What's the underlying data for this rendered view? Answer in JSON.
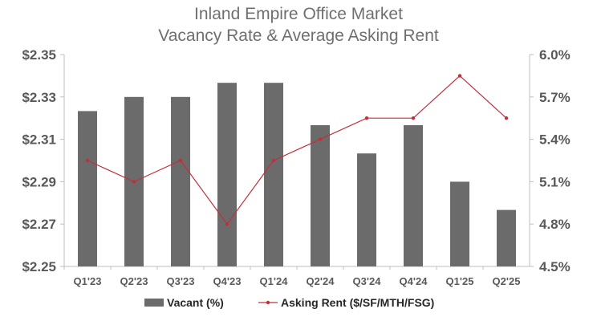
{
  "chart_data": {
    "type": "bar+line",
    "title_lines": [
      "Inland Empire Office Market",
      "Vacancy Rate & Average Asking Rent"
    ],
    "categories": [
      "Q1'23",
      "Q2'23",
      "Q3'23",
      "Q4'23",
      "Q1'24",
      "Q2'24",
      "Q3'24",
      "Q4'24",
      "Q1'25",
      "Q2'25"
    ],
    "left_axis": {
      "ylim": [
        2.25,
        2.35
      ],
      "ticks": [
        2.25,
        2.27,
        2.29,
        2.31,
        2.33,
        2.35
      ],
      "tick_labels": [
        "$2.25",
        "$2.27",
        "$2.29",
        "$2.31",
        "$2.33",
        "$2.35"
      ]
    },
    "right_axis": {
      "ylim": [
        4.5,
        6.0
      ],
      "ticks": [
        4.5,
        4.8,
        5.1,
        5.4,
        5.7,
        6.0
      ],
      "tick_labels": [
        "4.5%",
        "4.8%",
        "5.1%",
        "5.4%",
        "5.7%",
        "6.0%"
      ]
    },
    "series": [
      {
        "name": "Vacant (%)",
        "kind": "bar",
        "axis": "right",
        "color": "#6b6b6b",
        "values": [
          5.6,
          5.7,
          5.7,
          5.8,
          5.8,
          5.5,
          5.3,
          5.5,
          5.1,
          4.9
        ]
      },
      {
        "name": "Asking Rent ($/SF/MTH/FSG)",
        "kind": "line",
        "axis": "left",
        "color": "#c0303b",
        "values": [
          2.3,
          2.29,
          2.3,
          2.27,
          2.3,
          2.31,
          2.32,
          2.32,
          2.34,
          2.32
        ]
      }
    ],
    "grid": false,
    "legend_position": "bottom"
  }
}
